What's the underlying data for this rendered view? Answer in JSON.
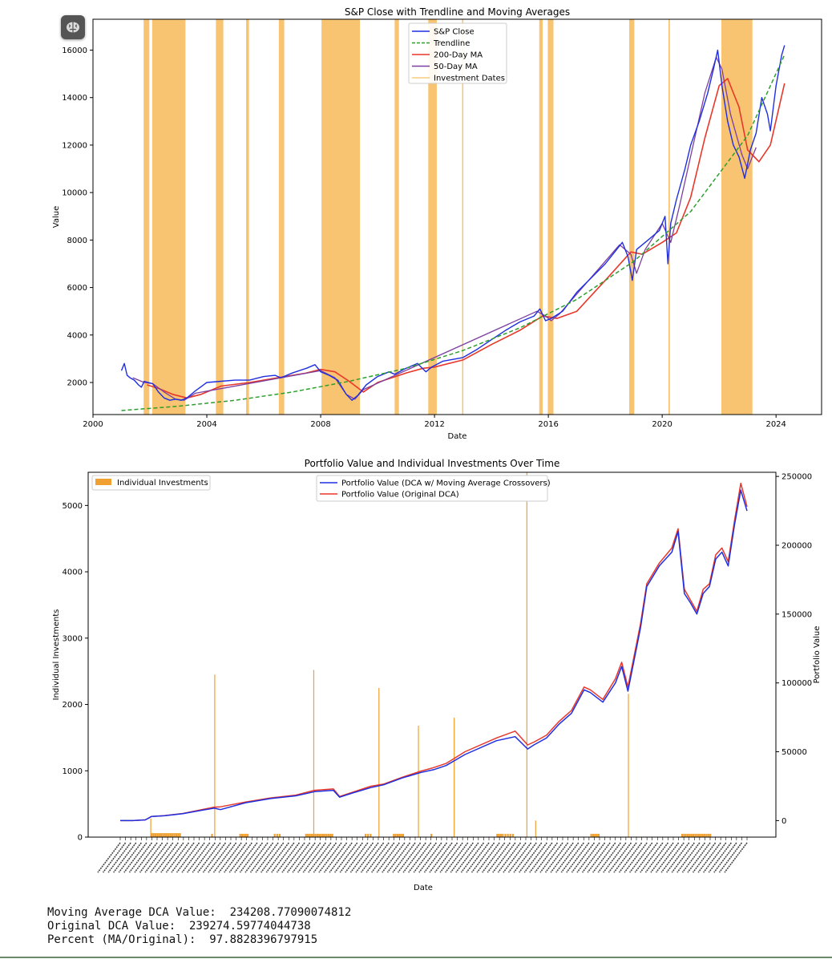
{
  "toolbar": {
    "icon": "brain-icon"
  },
  "output_lines": [
    "Moving Average DCA Value:  234208.77090074812",
    "Original DCA Value:  239274.59774044738",
    "Percent (MA/Original):  97.8828396797915"
  ],
  "chart_data": [
    {
      "type": "line",
      "title": "S&P Close with Trendline and Moving Averages",
      "xlabel": "Date",
      "ylabel": "Value",
      "xlim": [
        2000.0,
        2025.6
      ],
      "ylim": [
        650,
        17300
      ],
      "x_ticks": [
        2000,
        2004,
        2008,
        2012,
        2016,
        2020,
        2024
      ],
      "y_ticks": [
        2000,
        4000,
        6000,
        8000,
        10000,
        12000,
        14000,
        16000
      ],
      "legend": [
        "S&P Close",
        "Trendline",
        "200-Day MA",
        "50-Day MA",
        "Investment Dates"
      ],
      "legend_position": "top-center",
      "colors": {
        "close": "#1f2fe0",
        "trend": "#2ca02c",
        "ma200": "#e8372a",
        "ma50": "#7b3fa0",
        "invest": "#f5b041"
      },
      "investment_periods": [
        [
          2001.78,
          2001.98
        ],
        [
          2002.08,
          2003.25
        ],
        [
          2004.32,
          2004.58
        ],
        [
          2005.38,
          2005.48
        ],
        [
          2006.53,
          2006.72
        ],
        [
          2008.03,
          2009.38
        ],
        [
          2010.6,
          2010.75
        ],
        [
          2011.78,
          2012.08
        ],
        [
          2012.97,
          2012.99
        ],
        [
          2015.68,
          2015.8
        ],
        [
          2015.98,
          2016.18
        ],
        [
          2018.84,
          2019.02
        ],
        [
          2020.22,
          2020.27
        ],
        [
          2022.08,
          2023.17
        ]
      ],
      "series": [
        {
          "name": "S&P Close",
          "x": [
            2001.0,
            2001.1,
            2001.2,
            2001.3,
            2001.45,
            2001.6,
            2001.7,
            2001.8,
            2001.95,
            2002.1,
            2002.3,
            2002.5,
            2002.7,
            2002.9,
            2003.1,
            2003.3,
            2003.6,
            2004.0,
            2004.5,
            2005.0,
            2005.5,
            2006.0,
            2006.4,
            2006.6,
            2007.0,
            2007.5,
            2007.8,
            2008.0,
            2008.3,
            2008.6,
            2008.9,
            2009.1,
            2009.3,
            2009.6,
            2010.0,
            2010.4,
            2010.6,
            2011.0,
            2011.4,
            2011.7,
            2011.9,
            2012.3,
            2013.0,
            2013.5,
            2014.0,
            2014.5,
            2015.0,
            2015.5,
            2015.7,
            2015.9,
            2016.1,
            2016.5,
            2017.0,
            2017.5,
            2018.0,
            2018.6,
            2018.8,
            2018.95,
            2019.1,
            2019.5,
            2019.9,
            2020.1,
            2020.2,
            2020.3,
            2020.5,
            2020.8,
            2021.0,
            2021.3,
            2021.6,
            2021.8,
            2021.95,
            2022.1,
            2022.3,
            2022.5,
            2022.7,
            2022.9,
            2023.1,
            2023.3,
            2023.5,
            2023.7,
            2023.8,
            2024.0,
            2024.2,
            2024.3
          ],
          "y": [
            2500,
            2800,
            2300,
            2200,
            2100,
            1900,
            1800,
            2050,
            2000,
            1950,
            1600,
            1350,
            1250,
            1300,
            1250,
            1350,
            1650,
            2000,
            2050,
            2100,
            2100,
            2250,
            2300,
            2200,
            2400,
            2600,
            2750,
            2450,
            2300,
            2100,
            1500,
            1250,
            1450,
            1900,
            2250,
            2450,
            2350,
            2600,
            2800,
            2450,
            2650,
            2900,
            3050,
            3400,
            3800,
            4200,
            4550,
            4800,
            5100,
            4600,
            4700,
            5000,
            5800,
            6400,
            7000,
            7900,
            7300,
            6300,
            7600,
            8000,
            8400,
            9000,
            7000,
            8700,
            9700,
            11000,
            12000,
            13000,
            14200,
            15200,
            16000,
            14500,
            13000,
            12000,
            11500,
            10600,
            11800,
            12500,
            14000,
            13300,
            12600,
            14500,
            15800,
            16200
          ]
        },
        {
          "name": "Trendline",
          "x": [
            2001.0,
            2003.0,
            2005.0,
            2007.0,
            2009.0,
            2011.0,
            2013.0,
            2015.0,
            2017.0,
            2019.0,
            2021.0,
            2023.0,
            2024.3
          ],
          "y": [
            820,
            1000,
            1250,
            1600,
            2050,
            2600,
            3350,
            4300,
            5500,
            7100,
            9200,
            12400,
            15800
          ]
        },
        {
          "name": "200-Day MA",
          "x": [
            2001.9,
            2002.3,
            2002.8,
            2003.3,
            2003.8,
            2004.5,
            2005.5,
            2006.5,
            2007.5,
            2008.0,
            2008.5,
            2009.0,
            2009.5,
            2010.0,
            2010.5,
            2011.0,
            2011.6,
            2012.0,
            2013.0,
            2014.0,
            2015.0,
            2015.8,
            2016.3,
            2017.0,
            2018.0,
            2018.9,
            2019.3,
            2020.0,
            2020.5,
            2021.0,
            2021.5,
            2022.0,
            2022.3,
            2022.7,
            2023.0,
            2023.4,
            2023.8,
            2024.3
          ],
          "y": [
            1900,
            1750,
            1500,
            1350,
            1500,
            1850,
            2000,
            2200,
            2400,
            2550,
            2450,
            2050,
            1600,
            2000,
            2200,
            2400,
            2600,
            2650,
            2950,
            3600,
            4200,
            4800,
            4700,
            5000,
            6300,
            7500,
            7400,
            7900,
            8300,
            9800,
            12300,
            14500,
            14800,
            13600,
            11800,
            11300,
            12000,
            14600
          ]
        },
        {
          "name": "50-Day MA",
          "x": [
            2001.4,
            2001.8,
            2002.1,
            2002.5,
            2002.9,
            2003.2,
            2003.6,
            2008.0,
            2008.5,
            2008.9,
            2009.2,
            2009.5,
            2015.6,
            2015.9,
            2016.1,
            2016.4,
            2018.5,
            2018.9,
            2019.1,
            2019.4,
            2020.0,
            2020.3,
            2020.6,
            2021.5,
            2021.9,
            2022.1,
            2022.4,
            2022.8,
            2023.0,
            2023.3
          ],
          "y": [
            2200,
            2000,
            1950,
            1600,
            1300,
            1250,
            1550,
            2500,
            2200,
            1500,
            1300,
            1700,
            5000,
            4800,
            4600,
            4900,
            7800,
            7400,
            6600,
            7600,
            8700,
            7900,
            9400,
            14200,
            15700,
            15200,
            13300,
            11600,
            11000,
            11900
          ]
        }
      ]
    },
    {
      "type": "bar",
      "title": "Portfolio Value and Individual Investments Over Time",
      "xlabel": "Date",
      "ylabel": "Individual Investments",
      "y2label": "Portfolio Value",
      "ylim": [
        0,
        5500
      ],
      "y2lim": [
        -12000,
        253000
      ],
      "y_ticks": [
        0,
        1000,
        2000,
        3000,
        4000,
        5000
      ],
      "y2_ticks": [
        0,
        50000,
        100000,
        150000,
        200000,
        250000
      ],
      "legend_left": [
        "Individual Investments"
      ],
      "legend_right": [
        "Portfolio Value (DCA w/ Moving Average Crossovers)",
        "Portfolio Value (Original DCA)"
      ],
      "colors": {
        "bars": "#f0a030",
        "ma_dca": "#1f2fe0",
        "orig_dca": "#e8372a"
      },
      "bars": {
        "x": [
          0.049,
          0.052,
          0.055,
          0.058,
          0.061,
          0.064,
          0.067,
          0.07,
          0.073,
          0.076,
          0.079,
          0.082,
          0.085,
          0.088,
          0.091,
          0.094,
          0.145,
          0.19,
          0.193,
          0.196,
          0.199,
          0.202,
          0.245,
          0.249,
          0.253,
          0.295,
          0.298,
          0.301,
          0.304,
          0.307,
          0.31,
          0.313,
          0.316,
          0.319,
          0.322,
          0.325,
          0.328,
          0.331,
          0.334,
          0.337,
          0.39,
          0.394,
          0.398,
          0.435,
          0.438,
          0.441,
          0.444,
          0.447,
          0.45,
          0.495,
          0.6,
          0.603,
          0.606,
          0.609,
          0.613,
          0.617,
          0.621,
          0.625,
          0.75,
          0.753,
          0.756,
          0.759,
          0.762,
          0.895,
          0.898,
          0.901,
          0.904,
          0.907,
          0.91,
          0.913,
          0.916,
          0.919,
          0.922,
          0.925,
          0.928,
          0.931,
          0.934,
          0.937,
          0.94
        ],
        "y": [
          60,
          60,
          60,
          60,
          60,
          60,
          60,
          60,
          60,
          60,
          60,
          60,
          60,
          60,
          60,
          60,
          50,
          50,
          50,
          50,
          50,
          50,
          50,
          50,
          50,
          50,
          50,
          50,
          50,
          50,
          50,
          50,
          50,
          50,
          50,
          50,
          50,
          50,
          50,
          50,
          50,
          50,
          50,
          50,
          50,
          50,
          50,
          50,
          50,
          50,
          50,
          50,
          50,
          50,
          50,
          50,
          50,
          50,
          50,
          50,
          50,
          50,
          50,
          50,
          50,
          50,
          50,
          50,
          50,
          50,
          50,
          50,
          50,
          50,
          50,
          50,
          50,
          50,
          50
        ],
        "spikes_x": [
          0.048,
          0.15,
          0.308,
          0.412,
          0.475,
          0.532,
          0.648,
          0.662,
          0.81
        ],
        "spikes_y": [
          280,
          2450,
          2520,
          2250,
          1680,
          1800,
          5500,
          250,
          2160
        ]
      },
      "series": [
        {
          "name": "Portfolio Value (DCA w/ Moving Average Crossovers)",
          "x": [
            0.0,
            0.02,
            0.04,
            0.05,
            0.07,
            0.1,
            0.13,
            0.15,
            0.16,
            0.2,
            0.24,
            0.28,
            0.31,
            0.34,
            0.35,
            0.37,
            0.4,
            0.42,
            0.45,
            0.48,
            0.5,
            0.52,
            0.55,
            0.6,
            0.63,
            0.65,
            0.66,
            0.68,
            0.7,
            0.72,
            0.74,
            0.75,
            0.77,
            0.79,
            0.8,
            0.81,
            0.83,
            0.84,
            0.86,
            0.88,
            0.89,
            0.9,
            0.91,
            0.92,
            0.93,
            0.94,
            0.95,
            0.96,
            0.97,
            0.98,
            0.99,
            1.0
          ],
          "y": [
            0,
            0,
            500,
            3000,
            3500,
            5000,
            7500,
            9000,
            8000,
            13000,
            16000,
            18000,
            21000,
            22000,
            17000,
            20000,
            24000,
            26000,
            31000,
            35000,
            37000,
            40000,
            48000,
            58000,
            61000,
            52000,
            55000,
            60000,
            70000,
            78000,
            95000,
            93000,
            86000,
            100000,
            112000,
            94000,
            140000,
            170000,
            185000,
            195000,
            210000,
            165000,
            158000,
            150000,
            165000,
            170000,
            190000,
            195000,
            185000,
            215000,
            240000,
            225000
          ]
        },
        {
          "name": "Portfolio Value (Original DCA)",
          "x": [
            0.0,
            0.02,
            0.04,
            0.05,
            0.07,
            0.1,
            0.13,
            0.15,
            0.16,
            0.2,
            0.24,
            0.28,
            0.31,
            0.34,
            0.35,
            0.37,
            0.4,
            0.42,
            0.45,
            0.48,
            0.5,
            0.52,
            0.55,
            0.6,
            0.63,
            0.65,
            0.66,
            0.68,
            0.7,
            0.72,
            0.74,
            0.75,
            0.77,
            0.79,
            0.8,
            0.81,
            0.83,
            0.84,
            0.86,
            0.88,
            0.89,
            0.9,
            0.91,
            0.92,
            0.93,
            0.94,
            0.95,
            0.96,
            0.97,
            0.98,
            0.99,
            1.0
          ],
          "y": [
            0,
            0,
            500,
            3000,
            3600,
            5200,
            8000,
            9800,
            10000,
            13500,
            16500,
            18500,
            22000,
            23000,
            17500,
            20500,
            25000,
            26500,
            31500,
            36000,
            38500,
            41500,
            50000,
            60000,
            65000,
            55000,
            57000,
            62000,
            72000,
            80000,
            97000,
            95000,
            88000,
            103000,
            115000,
            97000,
            143000,
            172000,
            187000,
            198000,
            212000,
            168000,
            160000,
            152000,
            168000,
            172000,
            193000,
            198000,
            188000,
            218000,
            245000,
            228000
          ]
        }
      ]
    }
  ]
}
